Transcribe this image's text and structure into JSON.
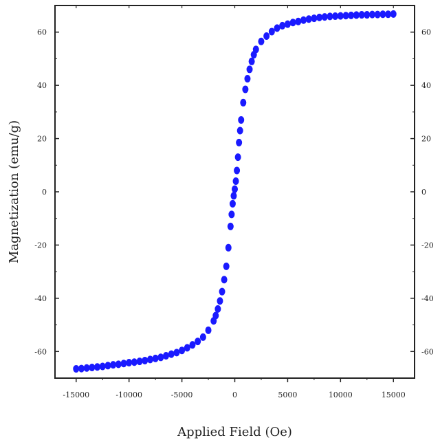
{
  "chart_data": {
    "type": "scatter",
    "title": "",
    "xlabel": "Applied Field (Oe)",
    "ylabel": "Magnetization (emu/g)",
    "xlim": [
      -17000,
      17000
    ],
    "ylim": [
      -70,
      70
    ],
    "xticks": [
      -15000,
      -10000,
      -5000,
      0,
      5000,
      10000,
      15000
    ],
    "yticks": [
      -60,
      -40,
      -20,
      0,
      20,
      40,
      60
    ],
    "marker_color": "#1a1aff",
    "grid": false,
    "legend": "none",
    "series": [
      {
        "values_x": [
          -15000,
          -14500,
          -14000,
          -13500,
          -13000,
          -12500,
          -12000,
          -11500,
          -11000,
          -10500,
          -10000,
          -9500,
          -9000,
          -8500,
          -8000,
          -7500,
          -7000,
          -6500,
          -6000,
          -5500,
          -5000,
          -4500,
          -4000,
          -3500,
          -3000,
          -2500,
          -2000,
          -1800,
          -1600,
          -1400,
          -1200,
          -1000,
          -800,
          -600,
          -400,
          -300,
          -200,
          -100,
          0,
          100,
          200,
          300,
          400,
          500,
          600,
          800,
          1000,
          1200,
          1400,
          1600,
          1800,
          2000,
          2500,
          3000,
          3500,
          4000,
          4500,
          5000,
          5500,
          6000,
          6500,
          7000,
          7500,
          8000,
          8500,
          9000,
          9500,
          10000,
          10500,
          11000,
          11500,
          12000,
          12500,
          13000,
          13500,
          14000,
          14500,
          15000
        ],
        "values_y": [
          -66.5,
          -66.4,
          -66.2,
          -66.0,
          -65.8,
          -65.6,
          -65.3,
          -65.0,
          -64.8,
          -64.5,
          -64.2,
          -64.0,
          -63.7,
          -63.4,
          -63.0,
          -62.6,
          -62.2,
          -61.6,
          -61.0,
          -60.4,
          -59.6,
          -58.6,
          -57.5,
          -56.2,
          -54.6,
          -52.0,
          -48.5,
          -46.5,
          -44.0,
          -41.0,
          -37.5,
          -33.0,
          -28.0,
          -21.0,
          -13.0,
          -8.5,
          -4.5,
          -1.5,
          1.0,
          4.0,
          8.0,
          13.0,
          18.5,
          23.0,
          27.0,
          33.5,
          38.5,
          42.5,
          46.0,
          49.0,
          51.5,
          53.5,
          56.5,
          58.5,
          60.2,
          61.5,
          62.4,
          63.0,
          63.6,
          64.0,
          64.5,
          64.9,
          65.2,
          65.5,
          65.7,
          65.9,
          66.0,
          66.1,
          66.2,
          66.3,
          66.4,
          66.5,
          66.5,
          66.6,
          66.6,
          66.7,
          66.7,
          66.8
        ]
      }
    ]
  }
}
